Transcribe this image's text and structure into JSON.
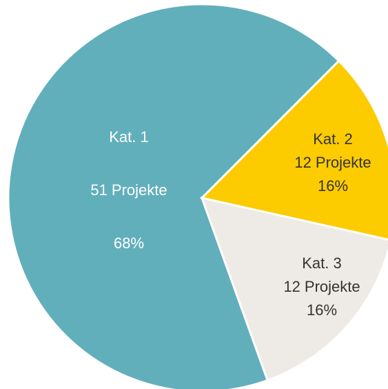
{
  "chart_data": {
    "type": "pie",
    "categories": [
      "Kat. 1",
      "Kat. 2",
      "Kat. 3"
    ],
    "values": [
      51,
      12,
      12
    ],
    "value_labels": [
      "51 Projekte",
      "12 Projekte",
      "12 Projekte"
    ],
    "percentages": [
      68,
      16,
      16
    ],
    "percentage_labels": [
      "68%",
      "16%",
      "16%"
    ],
    "colors": [
      "#62afbc",
      "#fccb00",
      "#eeebe6"
    ],
    "label_colors": [
      "#ffffff",
      "#333333",
      "#333333"
    ]
  }
}
